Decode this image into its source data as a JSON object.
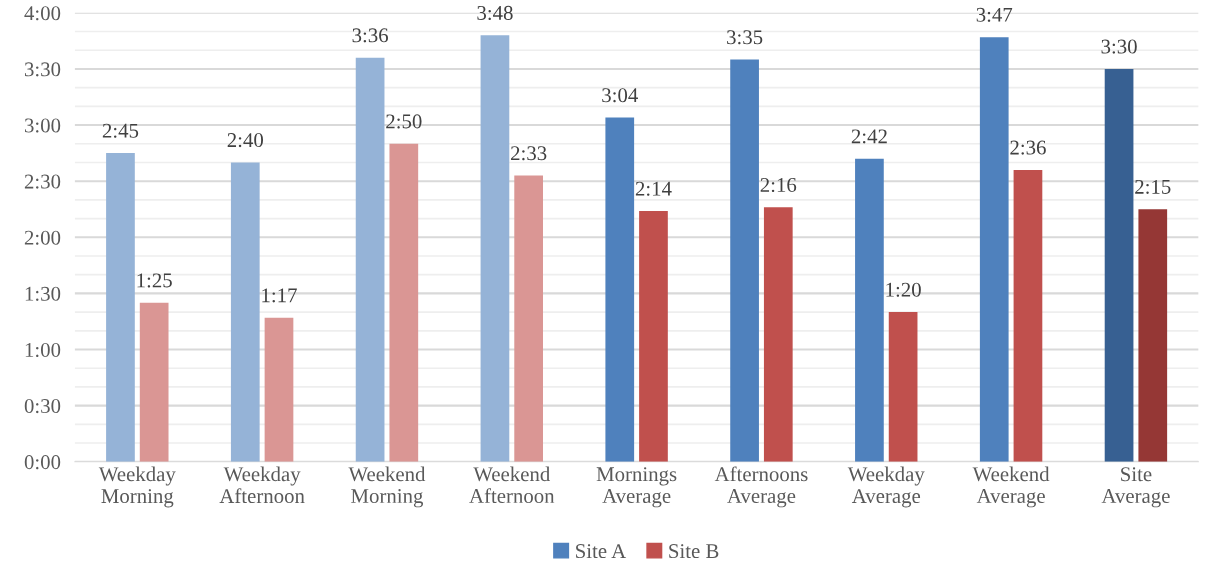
{
  "chart_data": {
    "type": "bar",
    "categories": [
      "Weekday\nMorning",
      "Weekday\nAfternoon",
      "Weekend\nMorning",
      "Weekend\nAfternoon",
      "Mornings\nAverage",
      "Afternoons\nAverage",
      "Weekday\nAverage",
      "Weekend\nAverage",
      "Site\nAverage"
    ],
    "series": [
      {
        "name": "Site A",
        "color": "#4f81bd",
        "colors": [
          "#95b3d7",
          "#95b3d7",
          "#95b3d7",
          "#95b3d7",
          "#4f81bd",
          "#4f81bd",
          "#4f81bd",
          "#4f81bd",
          "#376092"
        ],
        "values": [
          165,
          160,
          216,
          228,
          184,
          215,
          162,
          227,
          210
        ],
        "value_labels": [
          "2:45",
          "2:40",
          "3:36",
          "3:48",
          "3:04",
          "3:35",
          "2:42",
          "3:47",
          "3:30"
        ]
      },
      {
        "name": "Site B",
        "color": "#c0504d",
        "colors": [
          "#da9694",
          "#da9694",
          "#da9694",
          "#da9694",
          "#c0504d",
          "#c0504d",
          "#c0504d",
          "#c0504d",
          "#953735"
        ],
        "values": [
          85,
          77,
          170,
          153,
          134,
          136,
          80,
          156,
          135
        ],
        "value_labels": [
          "1:25",
          "1:17",
          "2:50",
          "2:33",
          "2:14",
          "2:16",
          "1:20",
          "2:36",
          "2:15"
        ]
      }
    ],
    "ylim": [
      0,
      240
    ],
    "yticks": [
      {
        "value": 0,
        "label": "0:00"
      },
      {
        "value": 10,
        "label": null
      },
      {
        "value": 20,
        "label": null
      },
      {
        "value": 30,
        "label": "0:30"
      },
      {
        "value": 40,
        "label": null
      },
      {
        "value": 50,
        "label": null
      },
      {
        "value": 60,
        "label": "1:00"
      },
      {
        "value": 70,
        "label": null
      },
      {
        "value": 80,
        "label": null
      },
      {
        "value": 90,
        "label": "1:30"
      },
      {
        "value": 100,
        "label": null
      },
      {
        "value": 110,
        "label": null
      },
      {
        "value": 120,
        "label": "2:00"
      },
      {
        "value": 130,
        "label": null
      },
      {
        "value": 140,
        "label": null
      },
      {
        "value": 150,
        "label": "2:30"
      },
      {
        "value": 160,
        "label": null
      },
      {
        "value": 170,
        "label": null
      },
      {
        "value": 180,
        "label": "3:00"
      },
      {
        "value": 190,
        "label": null
      },
      {
        "value": 200,
        "label": null
      },
      {
        "value": 210,
        "label": "3:30"
      },
      {
        "value": 220,
        "label": null
      },
      {
        "value": 230,
        "label": null
      },
      {
        "value": 240,
        "label": "4:00"
      }
    ],
    "grid": "y",
    "legend": "bottom"
  }
}
